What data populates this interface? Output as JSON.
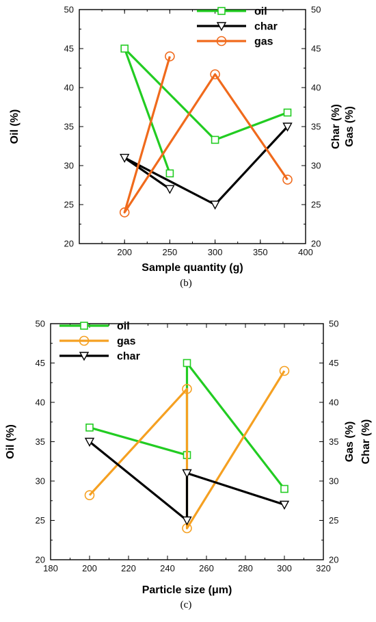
{
  "colors": {
    "oil": "#22cc22",
    "char": "#000000",
    "gas_b": "#f06a1c",
    "gas_c": "#f5a021"
  },
  "chart_data": [
    {
      "type": "line",
      "caption": "(b)",
      "xlabel": "Sample quantity (g)",
      "ylabel_left": "Oil (%)",
      "ylabel_right": [
        "Char (%)",
        "Gas (%)"
      ],
      "xlim": [
        150,
        400
      ],
      "ylim": [
        20,
        50
      ],
      "xticks": [
        "200",
        "250",
        "300",
        "350",
        "400"
      ],
      "yticks": [
        "20",
        "25",
        "30",
        "35",
        "40",
        "45",
        "50"
      ],
      "series": [
        {
          "name": "oil",
          "marker": "square",
          "color": "#22cc22",
          "x": [
            200,
            250,
            300,
            380
          ],
          "y": [
            45,
            29,
            33.3,
            36.8
          ],
          "order": [
            1,
            0,
            2,
            3
          ]
        },
        {
          "name": "char",
          "marker": "triangle-down",
          "color": "#000000",
          "x": [
            200,
            250,
            300,
            380
          ],
          "y": [
            31,
            27,
            25,
            35
          ],
          "order": [
            1,
            0,
            2,
            3
          ]
        },
        {
          "name": "gas",
          "marker": "circle",
          "color": "#f06a1c",
          "x": [
            200,
            250,
            300,
            380
          ],
          "y": [
            24,
            44,
            41.7,
            28.2
          ],
          "order": [
            1,
            0,
            2,
            3
          ]
        }
      ],
      "legend": {
        "position": "top-right",
        "entries": [
          "oil",
          "char",
          "gas"
        ]
      }
    },
    {
      "type": "line",
      "caption": "(c)",
      "xlabel": "Particle size (μm)",
      "ylabel_left": "Oil (%)",
      "ylabel_right": [
        "Gas (%)",
        "Char (%)"
      ],
      "xlim": [
        180,
        320
      ],
      "ylim": [
        20,
        50
      ],
      "xticks": [
        "180",
        "200",
        "220",
        "240",
        "260",
        "280",
        "300",
        "320"
      ],
      "yticks": [
        "20",
        "25",
        "30",
        "35",
        "40",
        "45",
        "50"
      ],
      "series": [
        {
          "name": "oil",
          "marker": "square",
          "color": "#22cc22",
          "x": [
            200,
            250,
            250,
            300
          ],
          "y": [
            36.8,
            33.3,
            45,
            29
          ]
        },
        {
          "name": "gas",
          "marker": "circle",
          "color": "#f5a021",
          "x": [
            200,
            250,
            250,
            300
          ],
          "y": [
            28.2,
            41.7,
            24,
            44
          ]
        },
        {
          "name": "char",
          "marker": "triangle-down",
          "color": "#000000",
          "x": [
            200,
            250,
            250,
            300
          ],
          "y": [
            35,
            25,
            31,
            27
          ]
        }
      ],
      "legend": {
        "position": "top-left",
        "entries": [
          "oil",
          "gas",
          "char"
        ]
      }
    }
  ]
}
